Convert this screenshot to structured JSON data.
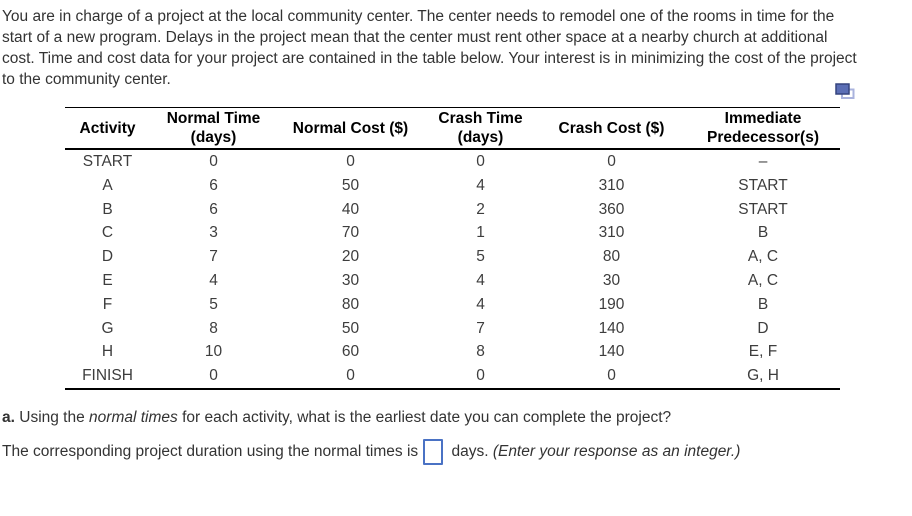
{
  "intro": {
    "lines": [
      "You are in charge of a project at the local community center. The center needs to remodel one of the rooms in time for the",
      "start of a new program. Delays in the project mean that the center must rent other space at a nearby church at additional",
      "cost. Time and cost data for your project are contained in the table below. Your interest is in minimizing the cost of the project",
      "to the community center."
    ]
  },
  "icons": {
    "copy_table": "copy-table-icon"
  },
  "table": {
    "columns": [
      "Activity",
      "Normal Time\n(days)",
      "Normal Cost ($)",
      "Crash Time\n(days)",
      "Crash Cost ($)",
      "Immediate\nPredecessor(s)"
    ],
    "rows": [
      [
        "START",
        "0",
        "0",
        "0",
        "0",
        "–"
      ],
      [
        "A",
        "6",
        "50",
        "4",
        "310",
        "START"
      ],
      [
        "B",
        "6",
        "40",
        "2",
        "360",
        "START"
      ],
      [
        "C",
        "3",
        "70",
        "1",
        "310",
        "B"
      ],
      [
        "D",
        "7",
        "20",
        "5",
        "80",
        "A, C"
      ],
      [
        "E",
        "4",
        "30",
        "4",
        "30",
        "A, C"
      ],
      [
        "F",
        "5",
        "80",
        "4",
        "190",
        "B"
      ],
      [
        "G",
        "8",
        "50",
        "7",
        "140",
        "D"
      ],
      [
        "H",
        "10",
        "60",
        "8",
        "140",
        "E, F"
      ],
      [
        "FINISH",
        "0",
        "0",
        "0",
        "0",
        "G, H"
      ]
    ]
  },
  "question": {
    "part_label": "a.",
    "before_italic": " Using the ",
    "italic_phrase": "normal times",
    "after_italic": " for each activity, what is the earliest date you can complete the project?"
  },
  "answer": {
    "before_input": "The corresponding project duration using the normal times is",
    "input_value": "",
    "after_input": " days. ",
    "instruction_italic": "(Enter your response as an integer.)"
  },
  "colors": {
    "input_border": "#4a72c4",
    "icon_front_fill": "#5b6eb5",
    "icon_front_stroke": "#35447e",
    "icon_back_stroke": "#aab3dd",
    "table_border": "#000000",
    "text": "#333333"
  }
}
